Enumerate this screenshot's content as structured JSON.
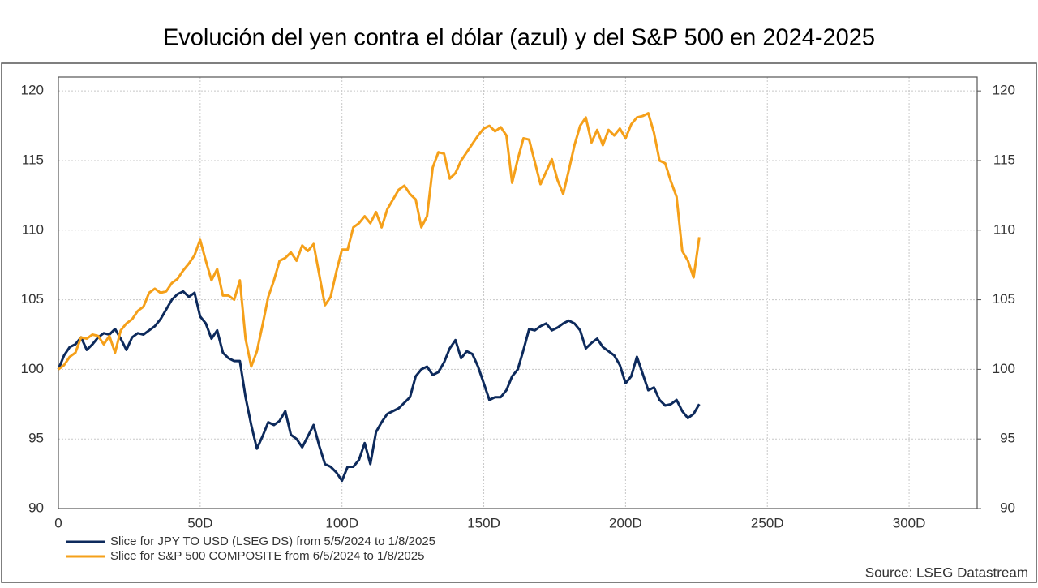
{
  "chart_data": {
    "type": "line",
    "title": "Evolución del yen contra el dólar (azul) y del S&P 500 en 2024-2025",
    "source": "Source: LSEG Datastream",
    "x": [
      0,
      2,
      4,
      6,
      8,
      10,
      12,
      14,
      16,
      18,
      20,
      22,
      24,
      26,
      28,
      30,
      32,
      34,
      36,
      38,
      40,
      42,
      44,
      46,
      48,
      50,
      52,
      54,
      56,
      58,
      60,
      62,
      64,
      66,
      68,
      70,
      72,
      74,
      76,
      78,
      80,
      82,
      84,
      86,
      88,
      90,
      92,
      94,
      96,
      98,
      100,
      102,
      104,
      106,
      108,
      110,
      112,
      114,
      116,
      118,
      120,
      122,
      124,
      126,
      128,
      130,
      132,
      134,
      136,
      138,
      140,
      142,
      144,
      146,
      148,
      150,
      152,
      154,
      156,
      158,
      160,
      162,
      164,
      166,
      168,
      170,
      172,
      174,
      176,
      178,
      180,
      182,
      184,
      186,
      188,
      190,
      192,
      194,
      196,
      198,
      200,
      202,
      204,
      206,
      208,
      210,
      212,
      214,
      216,
      218,
      220,
      222,
      224,
      226
    ],
    "series": [
      {
        "name": "Slice for JPY TO USD (LSEG DS) from 5/5/2024 to 1/8/2025",
        "color": "#0d2a5c",
        "values": [
          100,
          101,
          101.6,
          101.8,
          102.3,
          101.4,
          101.8,
          102.3,
          102.6,
          102.5,
          102.9,
          102.2,
          101.4,
          102.3,
          102.6,
          102.5,
          102.8,
          103.1,
          103.6,
          104.3,
          105,
          105.4,
          105.6,
          105.2,
          105.5,
          103.8,
          103.3,
          102.2,
          102.8,
          101.2,
          100.8,
          100.6,
          100.6,
          98,
          96,
          94.3,
          95.2,
          96.2,
          96,
          96.3,
          97,
          95.3,
          95,
          94.4,
          95.2,
          96,
          94.5,
          93.2,
          93,
          92.6,
          92,
          93,
          93,
          93.5,
          94.7,
          93.2,
          95.5,
          96.2,
          96.8,
          97,
          97.2,
          97.6,
          98,
          99.5,
          100,
          100.2,
          99.6,
          99.8,
          100.5,
          101.5,
          102.1,
          100.8,
          101.3,
          101.1,
          100.2,
          99,
          97.8,
          98,
          98,
          98.5,
          99.5,
          100,
          101.4,
          102.9,
          102.8,
          103.1,
          103.3,
          102.8,
          103,
          103.3,
          103.5,
          103.3,
          102.8,
          101.5,
          101.9,
          102.2,
          101.6,
          101.3,
          101,
          100.3,
          99,
          99.5,
          100.9,
          99.7,
          98.5,
          98.7,
          97.8,
          97.4,
          97.5,
          97.8,
          97,
          96.5,
          96.8,
          97.5
        ]
      },
      {
        "name": "Slice for S&P 500 COMPOSITE from 6/5/2024 to 1/8/2025",
        "color": "#f5a01a",
        "values": [
          100,
          100.3,
          100.9,
          101.2,
          102.3,
          102.2,
          102.5,
          102.4,
          101.8,
          102.4,
          101.2,
          102.8,
          103.3,
          103.6,
          104.2,
          104.5,
          105.5,
          105.8,
          105.5,
          105.6,
          106.2,
          106.5,
          107.1,
          107.6,
          108.2,
          109.3,
          107.8,
          106.4,
          107.2,
          105.3,
          105.3,
          105,
          106.4,
          102.2,
          100.2,
          101.3,
          103.2,
          105.2,
          106.4,
          107.8,
          108,
          108.4,
          107.8,
          108.9,
          108.5,
          109,
          106.8,
          104.6,
          105.2,
          107,
          108.6,
          108.6,
          110.2,
          110.5,
          111,
          110.5,
          111.3,
          110.2,
          111.5,
          112.2,
          112.9,
          113.2,
          112.6,
          112.2,
          110.2,
          111,
          114.5,
          115.6,
          115.5,
          113.7,
          114.1,
          115,
          115.6,
          116.2,
          116.8,
          117.3,
          117.5,
          117.1,
          117.4,
          116.8,
          113.4,
          115.1,
          116.6,
          116.5,
          114.9,
          113.3,
          114.2,
          115.1,
          113.6,
          112.6,
          114.3,
          116.1,
          117.5,
          118.1,
          116.3,
          117.2,
          116.1,
          117.2,
          116.8,
          117.3,
          116.6,
          117.6,
          118.1,
          118.2,
          118.4,
          117,
          115,
          114.8,
          113.5,
          112.4,
          108.5,
          107.8,
          106.6,
          109.5
        ]
      }
    ],
    "xlim": [
      0,
      324
    ],
    "xticks": [
      0,
      {
        "value": 50,
        "label": "50D"
      },
      {
        "value": 100,
        "label": "100D"
      },
      {
        "value": 150,
        "label": "150D"
      },
      {
        "value": 200,
        "label": "200D"
      },
      {
        "value": 250,
        "label": "250D"
      },
      {
        "value": 300,
        "label": "300D"
      }
    ],
    "ylim": [
      90,
      121
    ],
    "yticks": [
      90,
      95,
      100,
      105,
      110,
      115,
      120
    ],
    "y2lim": [
      90,
      121
    ],
    "y2ticks": [
      90,
      95,
      100,
      105,
      110,
      115,
      120
    ],
    "grid": true
  }
}
